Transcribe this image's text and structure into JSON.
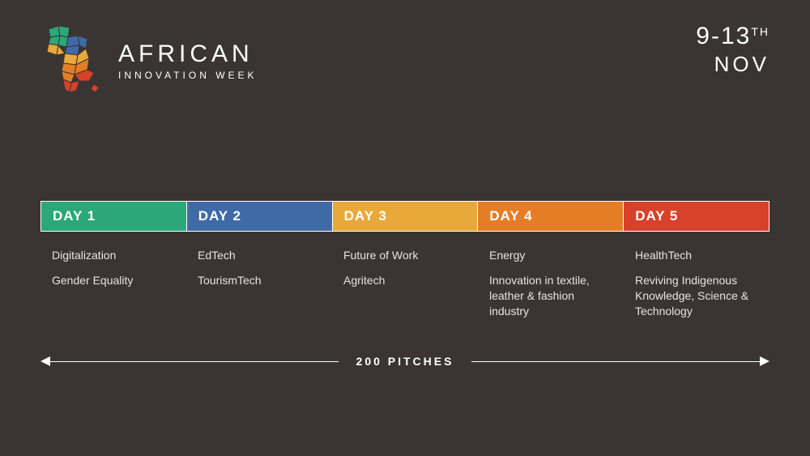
{
  "header": {
    "title": "AFRICAN",
    "subtitle": "INNOVATION WEEK",
    "date_range": "9-13",
    "date_suffix": "TH",
    "date_month": "NOV"
  },
  "logo_colors": {
    "green": "#2aa879",
    "blue": "#3f6aa6",
    "yellow": "#e8a93a",
    "orange": "#e47e26",
    "red": "#d8412a"
  },
  "days": [
    {
      "label": "DAY 1",
      "color": "#2aa879",
      "topics": [
        "Digitalization",
        "Gender Equality"
      ]
    },
    {
      "label": "DAY 2",
      "color": "#3f6aa6",
      "topics": [
        "EdTech",
        "TourismTech"
      ]
    },
    {
      "label": "DAY 3",
      "color": "#e8a93a",
      "topics": [
        "Future of Work",
        "Agritech"
      ]
    },
    {
      "label": "DAY 4",
      "color": "#e47e26",
      "topics": [
        "Energy",
        "Innovation in textile, leather & fashion industry"
      ]
    },
    {
      "label": "DAY 5",
      "color": "#d8412a",
      "topics": [
        "HealthTech",
        "Reviving Indigenous Knowledge, Science & Technology"
      ]
    }
  ],
  "pitches_label": "200 PITCHES",
  "background_color": "#3a3533",
  "text_color": "#ffffff",
  "topic_text_color": "#e6e3e1"
}
